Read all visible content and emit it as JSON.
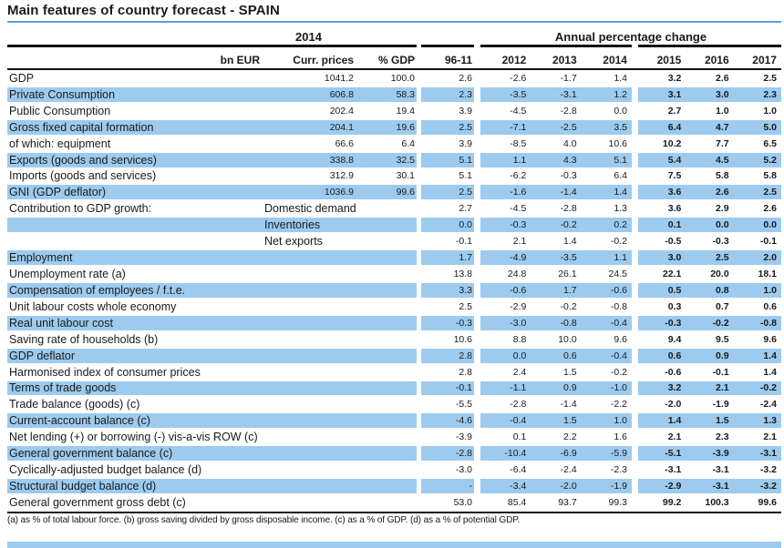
{
  "title": "Main features of country forecast - SPAIN",
  "colors": {
    "row_highlight": "#9DCBEF",
    "title_rule": "#5EA0D8",
    "table_line": "#111111",
    "text": "#1a1a1a"
  },
  "table": {
    "group_2014": "2014",
    "group_apc": "Annual percentage change",
    "columns": [
      "bn EUR",
      "Curr. prices",
      "% GDP",
      "96-11",
      "2012",
      "2013",
      "2014",
      "2015",
      "2016",
      "2017"
    ],
    "rows": [
      {
        "label": "GDP",
        "blue": false,
        "cp": "1041.2",
        "gdp": "100.0",
        "v": [
          "2.6",
          "-2.6",
          "-1.7",
          "1.4",
          "3.2",
          "2.6",
          "2.5"
        ]
      },
      {
        "label": "Private Consumption",
        "blue": true,
        "cp": "606.8",
        "gdp": "58.3",
        "v": [
          "2.3",
          "-3.5",
          "-3.1",
          "1.2",
          "3.1",
          "3.0",
          "2.3"
        ]
      },
      {
        "label": "Public Consumption",
        "blue": false,
        "cp": "202.4",
        "gdp": "19.4",
        "v": [
          "3.9",
          "-4.5",
          "-2.8",
          "0.0",
          "2.7",
          "1.0",
          "1.0"
        ]
      },
      {
        "label": "Gross fixed capital formation",
        "blue": true,
        "cp": "204.1",
        "gdp": "19.6",
        "v": [
          "2.5",
          "-7.1",
          "-2.5",
          "3.5",
          "6.4",
          "4.7",
          "5.0"
        ]
      },
      {
        "label": "of which: equipment",
        "blue": false,
        "cp": "66.6",
        "gdp": "6.4",
        "v": [
          "3.9",
          "-8.5",
          "4.0",
          "10.6",
          "10.2",
          "7.7",
          "6.5"
        ]
      },
      {
        "label": "Exports (goods and services)",
        "blue": true,
        "cp": "338.8",
        "gdp": "32.5",
        "v": [
          "5.1",
          "1.1",
          "4.3",
          "5.1",
          "5.4",
          "4.5",
          "5.2"
        ]
      },
      {
        "label": "Imports (goods and services)",
        "blue": false,
        "cp": "312.9",
        "gdp": "30.1",
        "v": [
          "5.1",
          "-6.2",
          "-0.3",
          "6.4",
          "7.5",
          "5.8",
          "5.8"
        ]
      },
      {
        "label": "GNI (GDP deflator)",
        "blue": true,
        "cp": "1036.9",
        "gdp": "99.6",
        "v": [
          "2.5",
          "-1.6",
          "-1.4",
          "1.4",
          "3.6",
          "2.6",
          "2.5"
        ]
      },
      {
        "label": "Contribution to GDP growth:",
        "blue": false,
        "sub": "Domestic demand",
        "v": [
          "2.7",
          "-4.5",
          "-2.8",
          "1.3",
          "3.6",
          "2.9",
          "2.6"
        ]
      },
      {
        "label": "",
        "blue": true,
        "sub": "Inventories",
        "v": [
          "0.0",
          "-0.3",
          "-0.2",
          "0.2",
          "0.1",
          "0.0",
          "0.0"
        ]
      },
      {
        "label": "",
        "blue": false,
        "sub": "Net exports",
        "v": [
          "-0.1",
          "2.1",
          "1.4",
          "-0.2",
          "-0.5",
          "-0.3",
          "-0.1"
        ]
      },
      {
        "label": "Employment",
        "blue": true,
        "cp": "",
        "gdp": "",
        "v": [
          "1.7",
          "-4.9",
          "-3.5",
          "1.1",
          "3.0",
          "2.5",
          "2.0"
        ]
      },
      {
        "label": "Unemployment rate (a)",
        "blue": false,
        "cp": "",
        "gdp": "",
        "v": [
          "13.8",
          "24.8",
          "26.1",
          "24.5",
          "22.1",
          "20.0",
          "18.1"
        ]
      },
      {
        "label": "Compensation of employees / f.t.e.",
        "blue": true,
        "cp": "",
        "gdp": "",
        "v": [
          "3.3",
          "-0.6",
          "1.7",
          "-0.6",
          "0.5",
          "0.8",
          "1.0"
        ]
      },
      {
        "label": "Unit labour costs whole economy",
        "blue": false,
        "cp": "",
        "gdp": "",
        "v": [
          "2.5",
          "-2.9",
          "-0.2",
          "-0.8",
          "0.3",
          "0.7",
          "0.6"
        ]
      },
      {
        "label": "Real unit labour cost",
        "blue": true,
        "cp": "",
        "gdp": "",
        "v": [
          "-0.3",
          "-3.0",
          "-0.8",
          "-0.4",
          "-0.3",
          "-0.2",
          "-0.8"
        ]
      },
      {
        "label": "Saving rate of households (b)",
        "blue": false,
        "cp": "",
        "gdp": "",
        "v": [
          "10.6",
          "8.8",
          "10.0",
          "9.6",
          "9.4",
          "9.5",
          "9.6"
        ]
      },
      {
        "label": "GDP deflator",
        "blue": true,
        "cp": "",
        "gdp": "",
        "v": [
          "2.8",
          "0.0",
          "0.6",
          "-0.4",
          "0.6",
          "0.9",
          "1.4"
        ]
      },
      {
        "label": "Harmonised index of consumer prices",
        "blue": false,
        "cp": "",
        "gdp": "",
        "v": [
          "2.8",
          "2.4",
          "1.5",
          "-0.2",
          "-0.6",
          "-0.1",
          "1.4"
        ]
      },
      {
        "label": "Terms of trade goods",
        "blue": true,
        "cp": "",
        "gdp": "",
        "v": [
          "-0.1",
          "-1.1",
          "0.9",
          "-1.0",
          "3.2",
          "2.1",
          "-0.2"
        ]
      },
      {
        "label": "Trade balance (goods) (c)",
        "blue": false,
        "cp": "",
        "gdp": "",
        "v": [
          "-5.5",
          "-2.8",
          "-1.4",
          "-2.2",
          "-2.0",
          "-1.9",
          "-2.4"
        ]
      },
      {
        "label": "Current-account balance (c)",
        "blue": true,
        "cp": "",
        "gdp": "",
        "v": [
          "-4.6",
          "-0.4",
          "1.5",
          "1.0",
          "1.4",
          "1.5",
          "1.3"
        ]
      },
      {
        "label": "Net lending (+) or borrowing (-) vis-a-vis ROW (c)",
        "blue": false,
        "cp": "",
        "gdp": "",
        "v": [
          "-3.9",
          "0.1",
          "2.2",
          "1.6",
          "2.1",
          "2.3",
          "2.1"
        ]
      },
      {
        "label": "General government balance (c)",
        "blue": true,
        "cp": "",
        "gdp": "",
        "v": [
          "-2.8",
          "-10.4",
          "-6.9",
          "-5.9",
          "-5.1",
          "-3.9",
          "-3.1"
        ]
      },
      {
        "label": "Cyclically-adjusted budget balance (d)",
        "blue": false,
        "cp": "",
        "gdp": "",
        "v": [
          "-3.0",
          "-6.4",
          "-2.4",
          "-2.3",
          "-3.1",
          "-3.1",
          "-3.2"
        ]
      },
      {
        "label": "Structural budget balance (d)",
        "blue": true,
        "cp": "",
        "gdp": "",
        "v": [
          "-",
          "-3.4",
          "-2.0",
          "-1.9",
          "-2.9",
          "-3.1",
          "-3.2"
        ]
      },
      {
        "label": "General government gross debt (c)",
        "blue": false,
        "cp": "",
        "gdp": "",
        "v": [
          "53.0",
          "85.4",
          "93.7",
          "99.3",
          "99.2",
          "100.3",
          "99.6"
        ]
      }
    ]
  },
  "footnote": "(a) as % of total labour force. (b) gross saving divided by gross disposable income. (c) as a % of GDP. (d) as a % of potential GDP."
}
